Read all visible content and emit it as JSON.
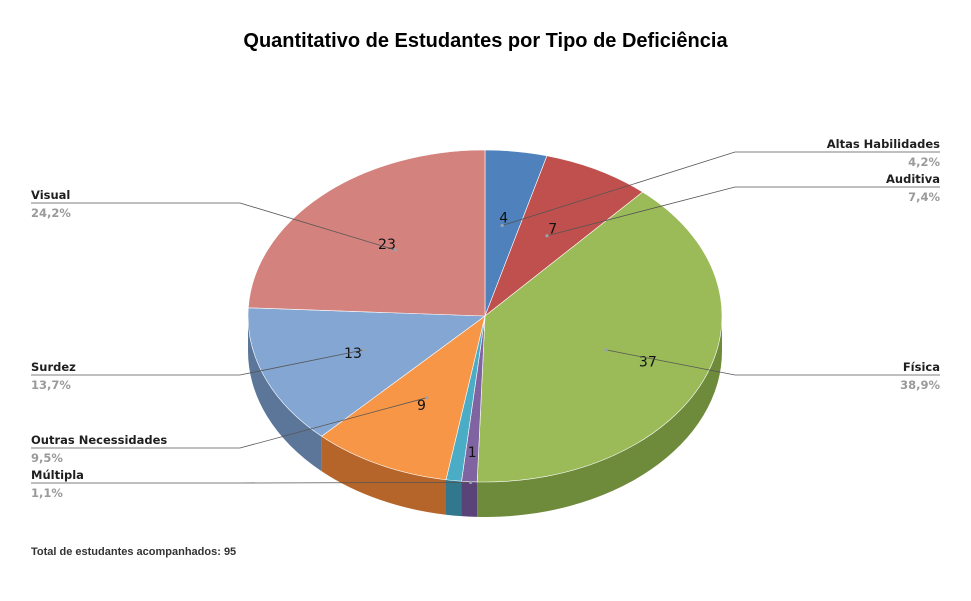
{
  "chart_data": {
    "type": "pie",
    "title": "Quantitativo de Estudantes por Tipo de Deficiência",
    "slices": [
      {
        "name": "Altas Habilidades",
        "value": 4,
        "percent": "4,2%",
        "color": "#4f81bd",
        "side_color": "#355f8f",
        "label_side": "right"
      },
      {
        "name": "Auditiva",
        "value": 7,
        "percent": "7,4%",
        "color": "#c0504d",
        "side_color": "#8c3836",
        "label_side": "right"
      },
      {
        "name": "Física",
        "value": 37,
        "percent": "38,9%",
        "color": "#9bbb59",
        "side_color": "#6e8a3b",
        "label_side": "right"
      },
      {
        "name": "Múltipla",
        "value": 1,
        "percent": "1,1%",
        "color": "#8064a2",
        "side_color": "#5a4378",
        "label_side": "left"
      },
      {
        "name": "",
        "value": 1,
        "percent": "",
        "color": "#4bacc6",
        "side_color": "#31788c",
        "label_side": "none"
      },
      {
        "name": "Outras Necessidades",
        "value": 9,
        "percent": "9,5%",
        "color": "#f79646",
        "side_color": "#b5652a",
        "label_side": "left"
      },
      {
        "name": "Surdez",
        "value": 13,
        "percent": "13,7%",
        "color": "#84a6d3",
        "side_color": "#5b7699",
        "label_side": "left"
      },
      {
        "name": "Visual",
        "value": 23,
        "percent": "24,2%",
        "color": "#d4827d",
        "side_color": "#9e5a56",
        "label_side": "left"
      }
    ],
    "value_labels": [
      "4",
      "7",
      "37",
      "1",
      "",
      "9",
      "13",
      "23"
    ],
    "legend": "none"
  },
  "footer": {
    "note": "Total de estudantes acompanhados: 95"
  }
}
